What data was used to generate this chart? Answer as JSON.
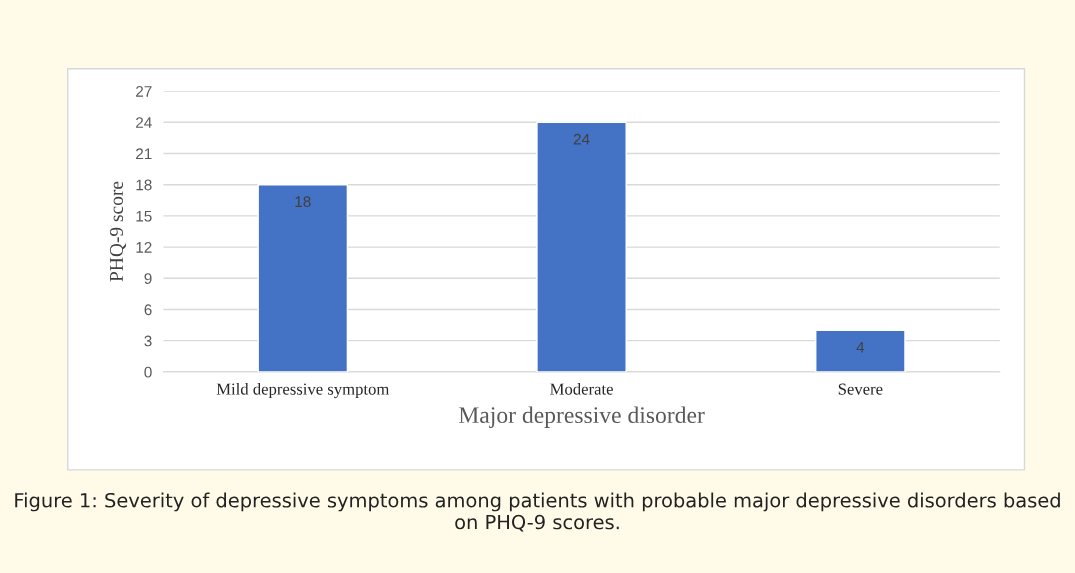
{
  "chart_data": {
    "type": "bar",
    "categories": [
      "Mild depressive symptom",
      "Moderate",
      "Severe"
    ],
    "values": [
      18,
      24,
      4
    ],
    "color": "#4472c4",
    "xlabel": "Major depressive disorder",
    "ylabel": "PHQ-9 score",
    "ylim": [
      0,
      27
    ],
    "yticks": [
      0,
      3,
      6,
      9,
      12,
      15,
      18,
      21,
      24,
      27
    ],
    "grid": "y",
    "data_labels": true,
    "annotations": [
      "Figure 1: Severity of depressive symptoms among patients with probable major depressive disorders based on PHQ-9 scores."
    ]
  }
}
